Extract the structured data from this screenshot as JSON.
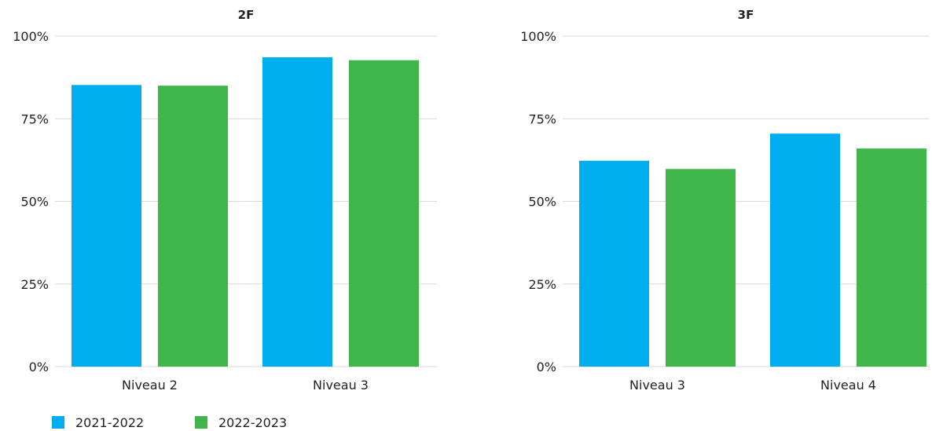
{
  "colors": {
    "series1": "#00aeef",
    "series2": "#40b54a",
    "grid": "#d9d9d9"
  },
  "legend": {
    "items": [
      "2021-2022",
      "2022-2023"
    ]
  },
  "chart_data": [
    {
      "type": "bar",
      "title": "2F",
      "categories": [
        "Niveau 2",
        "Niveau 3"
      ],
      "series": [
        {
          "name": "2021-2022",
          "values": [
            85.2,
            93.6
          ]
        },
        {
          "name": "2022-2023",
          "values": [
            85.0,
            92.7
          ]
        }
      ],
      "yticks": [
        "0%",
        "25%",
        "50%",
        "75%",
        "100%"
      ],
      "ylim": [
        0,
        100
      ],
      "grid": true,
      "legend_position": "bottom-left"
    },
    {
      "type": "bar",
      "title": "3F",
      "categories": [
        "Niveau 3",
        "Niveau 4"
      ],
      "series": [
        {
          "name": "2021-2022",
          "values": [
            62.3,
            70.5
          ]
        },
        {
          "name": "2022-2023",
          "values": [
            59.8,
            66.0
          ]
        }
      ],
      "yticks": [
        "0%",
        "25%",
        "50%",
        "75%",
        "100%"
      ],
      "ylim": [
        0,
        100
      ],
      "grid": true
    }
  ]
}
